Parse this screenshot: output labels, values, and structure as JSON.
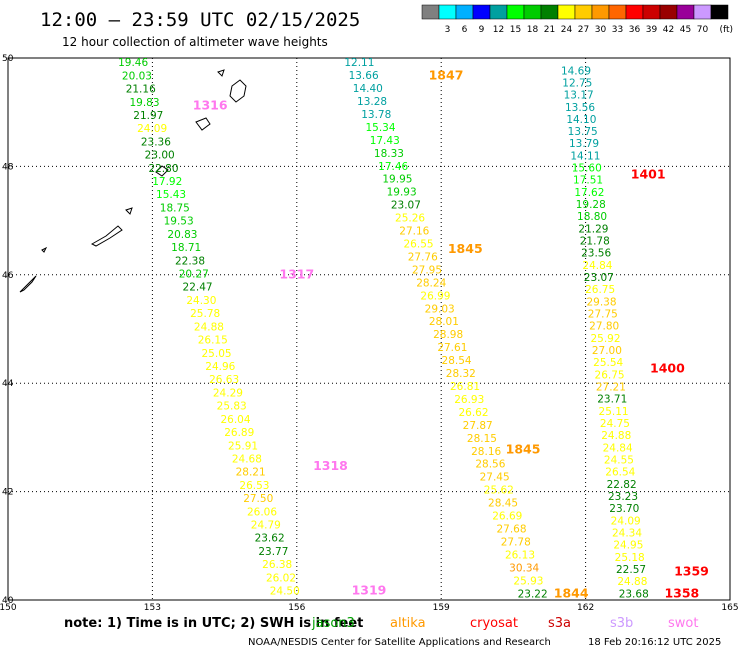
{
  "header": {
    "title": "12:00 — 23:59 UTC 02/15/2025",
    "subtitle": "12 hour collection of altimeter wave heights"
  },
  "colorbar": {
    "unit_label": "(ft)",
    "labels": [
      "3",
      "6",
      "9",
      "12",
      "15",
      "18",
      "21",
      "24",
      "27",
      "30",
      "33",
      "36",
      "39",
      "42",
      "45",
      "70"
    ],
    "colors": [
      "#808080",
      "#00ffff",
      "#00b0ff",
      "#0000ff",
      "#00a0a0",
      "#00ff00",
      "#00cc00",
      "#008000",
      "#ffff00",
      "#ffcc00",
      "#ff9900",
      "#ff6600",
      "#ff0000",
      "#cc0000",
      "#990000",
      "#990099",
      "#cc99ff",
      "#000000"
    ]
  },
  "map": {
    "lon_ticks": [
      "150",
      "153",
      "156",
      "159",
      "162",
      "165"
    ],
    "lat_ticks": [
      "50",
      "48",
      "46",
      "44",
      "42",
      "40"
    ],
    "lon_range": [
      150,
      165
    ],
    "lat_range": [
      40,
      50
    ],
    "gridlines": "dotted"
  },
  "tracks": [
    {
      "start": [
        152.6,
        49.85
      ],
      "end": [
        155.75,
        40.1
      ],
      "values": [
        "19.46",
        "20.03",
        "21.16",
        "19.83",
        "21.97",
        "24.09",
        "23.36",
        "23.00",
        "22.80",
        "17.92",
        "15.43",
        "18.75",
        "19.53",
        "20.83",
        "18.71",
        "22.38",
        "20.27",
        "22.47",
        "24.30",
        "25.78",
        "24.88",
        "26.15",
        "25.05",
        "24.96",
        "26.63",
        "24.29",
        "25.83",
        "26.04",
        "26.89",
        "25.91",
        "24.68",
        "28.21",
        "26.53",
        "27.50",
        "26.06",
        "24.79",
        "23.62",
        "23.77",
        "26.38",
        "26.02",
        "24.50"
      ],
      "time_labels": [
        {
          "text": "1316",
          "lon": 154.2,
          "lat": 49.05,
          "color": "#ff77ee"
        },
        {
          "text": "1317",
          "lon": 156.0,
          "lat": 45.93,
          "color": "#ff77ee"
        },
        {
          "text": "1318",
          "lon": 156.7,
          "lat": 42.4,
          "color": "#ff77ee"
        },
        {
          "text": "1319",
          "lon": 157.5,
          "lat": 40.1,
          "color": "#ff77ee"
        }
      ]
    },
    {
      "start": [
        157.3,
        49.85
      ],
      "end": [
        160.9,
        40.05
      ],
      "values": [
        "12.11",
        "13.66",
        "14.40",
        "13.28",
        "13.78",
        "15.34",
        "17.43",
        "18.33",
        "17.46",
        "19.95",
        "19.93",
        "23.07",
        "25.26",
        "27.16",
        "26.55",
        "27.76",
        "27.95",
        "28.24",
        "26.99",
        "29.03",
        "28.01",
        "28.98",
        "27.61",
        "28.54",
        "28.32",
        "26.81",
        "26.93",
        "26.62",
        "27.87",
        "28.15",
        "28.16",
        "28.56",
        "27.45",
        "25.62",
        "28.45",
        "26.69",
        "27.68",
        "27.78",
        "26.13",
        "30.34",
        "25.93",
        "23.22"
      ],
      "time_labels": [
        {
          "text": "1847",
          "lon": 159.1,
          "lat": 49.6,
          "color": "#ff9900"
        },
        {
          "text": "1845",
          "lon": 159.5,
          "lat": 46.4,
          "color": "#ff9900"
        },
        {
          "text": "1845",
          "lon": 160.7,
          "lat": 42.7,
          "color": "#ff9900"
        },
        {
          "text": "1844",
          "lon": 161.7,
          "lat": 40.05,
          "color": "#ff9900"
        }
      ]
    },
    {
      "start": [
        161.8,
        49.7
      ],
      "end": [
        163.0,
        40.05
      ],
      "values": [
        "14.69",
        "12.75",
        "13.17",
        "13.56",
        "14.10",
        "13.75",
        "13.79",
        "14.11",
        "15.60",
        "17.51",
        "17.62",
        "19.28",
        "18.80",
        "21.29",
        "21.78",
        "23.56",
        "24.84",
        "23.07",
        "26.75",
        "29.38",
        "27.75",
        "27.80",
        "25.92",
        "27.00",
        "25.54",
        "26.75",
        "27.21",
        "23.71",
        "25.11",
        "24.75",
        "24.88",
        "24.84",
        "24.55",
        "26.54",
        "22.82",
        "23.23",
        "23.70",
        "24.09",
        "24.34",
        "24.95",
        "25.18",
        "22.57",
        "24.88",
        "23.68"
      ],
      "time_labels": [
        {
          "text": "1401",
          "lon": 163.3,
          "lat": 47.78,
          "color": "#ff0000"
        },
        {
          "text": "1400",
          "lon": 163.7,
          "lat": 44.2,
          "color": "#ff0000"
        },
        {
          "text": "1359",
          "lon": 164.2,
          "lat": 40.45,
          "color": "#ff0000"
        },
        {
          "text": "1358",
          "lon": 164.0,
          "lat": 40.05,
          "color": "#ff0000"
        }
      ]
    }
  ],
  "footer": {
    "note": "note: 1) Time is in UTC; 2) SWH is in feet",
    "legend": [
      {
        "name": "jason3",
        "color": "#00a000"
      },
      {
        "name": "altika",
        "color": "#ff9900"
      },
      {
        "name": "cryosat",
        "color": "#ff0000"
      },
      {
        "name": "s3a",
        "color": "#cc0000"
      },
      {
        "name": "s3b",
        "color": "#cc99ff"
      },
      {
        "name": "swot",
        "color": "#ff77ee"
      }
    ],
    "credit": "NOAA/NESDIS Center for Satellite Applications and Research",
    "timestamp": "18 Feb 20:16:12 UTC 2025"
  }
}
